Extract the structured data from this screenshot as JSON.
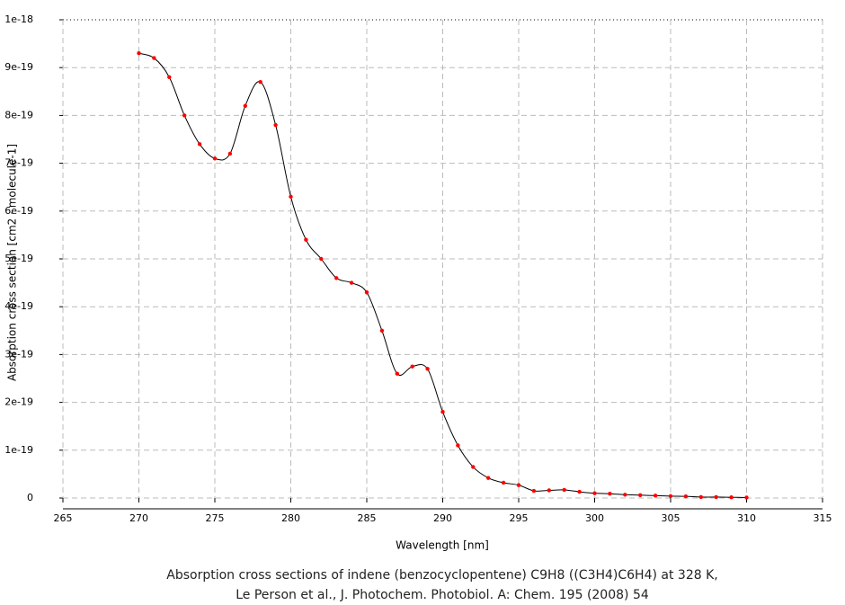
{
  "chart_data": {
    "type": "line",
    "title": [
      "Absorption cross sections of indene (benzocyclopentene) C9H8 ((C3H4)C6H4) at 328 K,",
      "Le Person et al., J. Photochem. Photobiol. A: Chem. 195 (2008) 54"
    ],
    "x_label": "Wavelength [nm]",
    "y_label": "Absorption cross section [cm2 · molecule-1]",
    "x": [
      270,
      271,
      272,
      273,
      274,
      275,
      276,
      277,
      278,
      279,
      280,
      281,
      282,
      283,
      284,
      285,
      286,
      287,
      288,
      289,
      290,
      291,
      292,
      293,
      294,
      295,
      296,
      297,
      298,
      299,
      300,
      301,
      302,
      303,
      304,
      305,
      306,
      307,
      308,
      309,
      310
    ],
    "series": [
      {
        "color": "#000000",
        "marker_color": "#ff0000",
        "values": [
          9.3e-19,
          9.2e-19,
          8.8e-19,
          8e-19,
          7.4e-19,
          7.1e-19,
          7.2e-19,
          8.2e-19,
          8.7e-19,
          7.8e-19,
          6.3e-19,
          5.4e-19,
          5e-19,
          4.6e-19,
          4.5e-19,
          4.3e-19,
          3.5e-19,
          2.6e-19,
          2.75e-19,
          2.7e-19,
          1.8e-19,
          1.1e-19,
          6.5e-20,
          4.2e-20,
          3.2e-20,
          2.7e-20,
          1.5e-20,
          1.6e-20,
          1.7e-20,
          1.3e-20,
          1e-20,
          9e-21,
          7e-21,
          6e-21,
          5e-21,
          4e-21,
          3.5e-21,
          2e-21,
          2e-21,
          1.5e-21,
          1e-21
        ]
      }
    ],
    "xlim": [
      265,
      315
    ],
    "xticks": [
      265,
      270,
      275,
      280,
      285,
      290,
      295,
      300,
      305,
      310,
      315
    ],
    "ylim": [
      0,
      1e-18
    ],
    "yticks": [
      0,
      1e-19,
      2e-19,
      3e-19,
      4e-19,
      5e-19,
      6e-19,
      7e-19,
      8e-19,
      9e-19,
      1e-18
    ],
    "grid": true
  }
}
